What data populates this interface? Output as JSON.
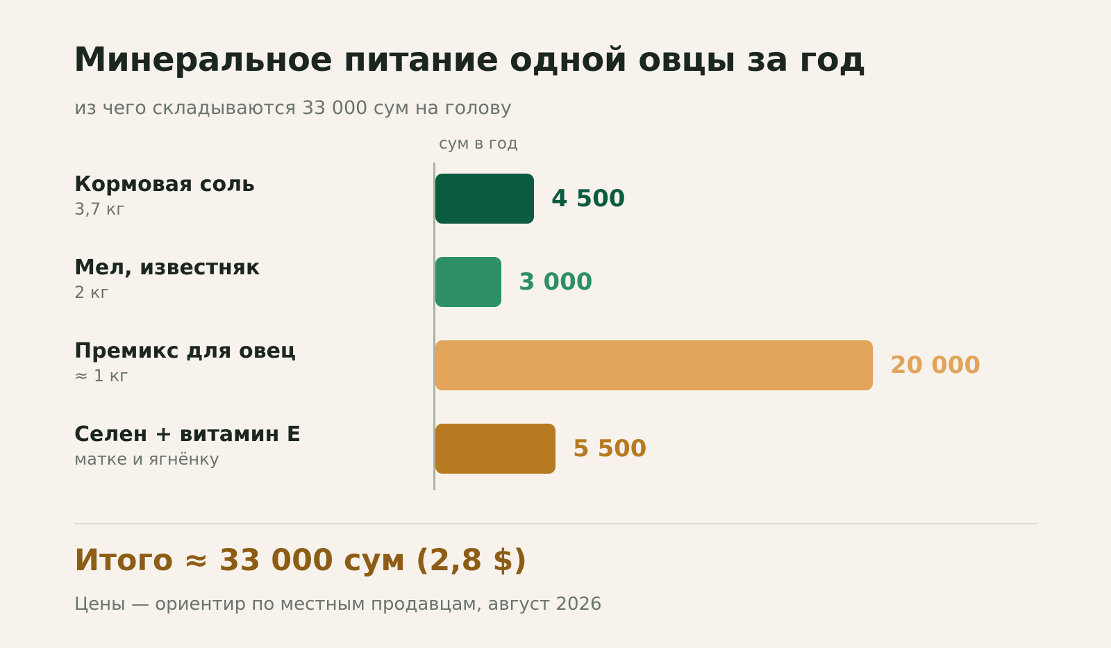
{
  "title": "Минеральное питание одной овцы за год",
  "subtitle": "из чего складываются 33 000 сум на голову",
  "chart_data": {
    "type": "bar",
    "orientation": "horizontal",
    "unit_label": "сум в год",
    "categories": [
      "Кормовая соль",
      "Мел, известняк",
      "Премикс для овец",
      "Селен + витамин Е"
    ],
    "notes": [
      "3,7 кг",
      "2 кг",
      "≈ 1 кг",
      "матке и ягнёнку"
    ],
    "values": [
      4500,
      3000,
      20000,
      5500
    ],
    "value_labels": [
      "4 500",
      "3 000",
      "20 000",
      "5 500"
    ],
    "colors": [
      "#0b5b40",
      "#2e8f66",
      "#e2a45a",
      "#b87a20"
    ],
    "xlim": [
      0,
      20000
    ],
    "grid": false
  },
  "total": "Итого ≈ 33 000 сум (2,8 $)",
  "footnote": "Цены — ориентир по местным продавцам, август 2026"
}
